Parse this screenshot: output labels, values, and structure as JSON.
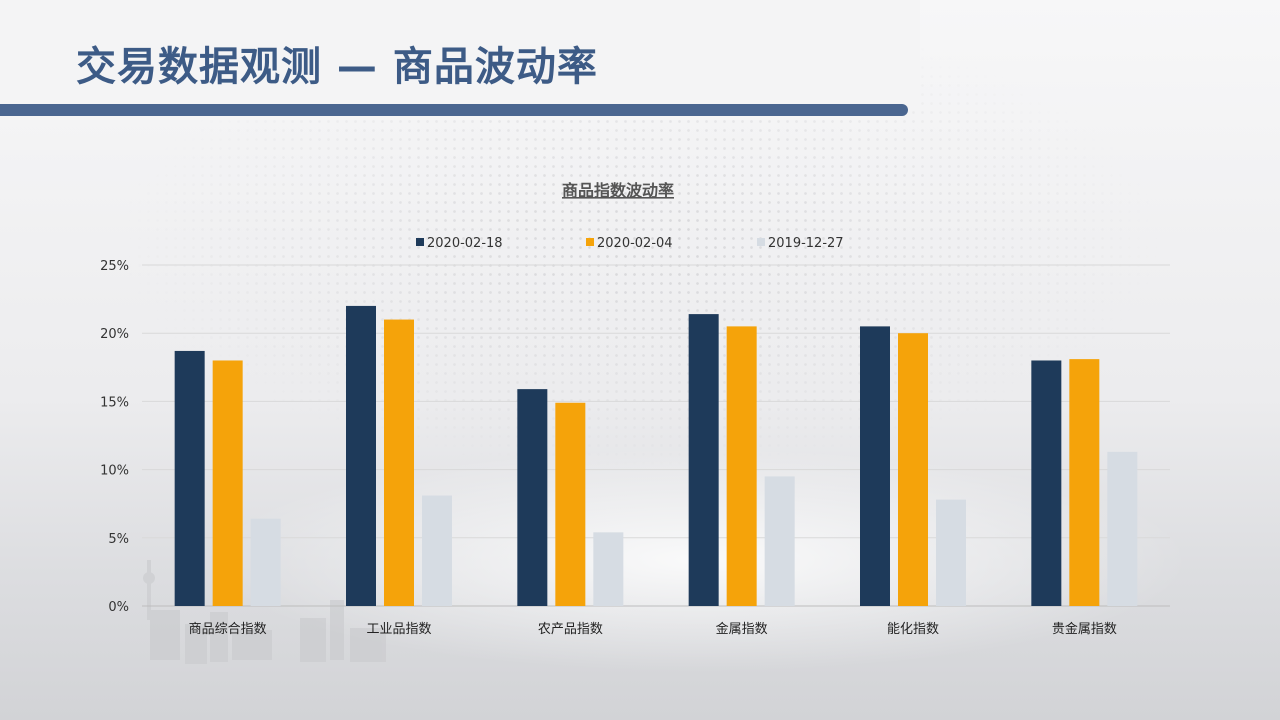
{
  "page": {
    "title": "交易数据观测 — 商品波动率"
  },
  "colors": {
    "series": [
      "#1e3a5a",
      "#f5a30a",
      "#d6dce3"
    ],
    "header_bar": "#4a6690",
    "title": "#3d5b86"
  },
  "chart_data": {
    "type": "bar",
    "title": "商品指数波动率",
    "xlabel": "",
    "ylabel": "",
    "categories": [
      "商品综合指数",
      "工业品指数",
      "农产品指数",
      "金属指数",
      "能化指数",
      "贵金属指数"
    ],
    "series": [
      {
        "name": "2020-02-18",
        "values": [
          18.7,
          22.0,
          15.9,
          21.4,
          20.5,
          18.0
        ]
      },
      {
        "name": "2020-02-04",
        "values": [
          18.0,
          21.0,
          14.9,
          20.5,
          20.0,
          18.1
        ]
      },
      {
        "name": "2019-12-27",
        "values": [
          6.4,
          8.1,
          5.4,
          9.5,
          7.8,
          11.3
        ]
      }
    ],
    "ylim": [
      0,
      25
    ],
    "yticks": [
      "0%",
      "5%",
      "10%",
      "15%",
      "20%",
      "25%"
    ],
    "grid": true,
    "legend": "top-center"
  }
}
